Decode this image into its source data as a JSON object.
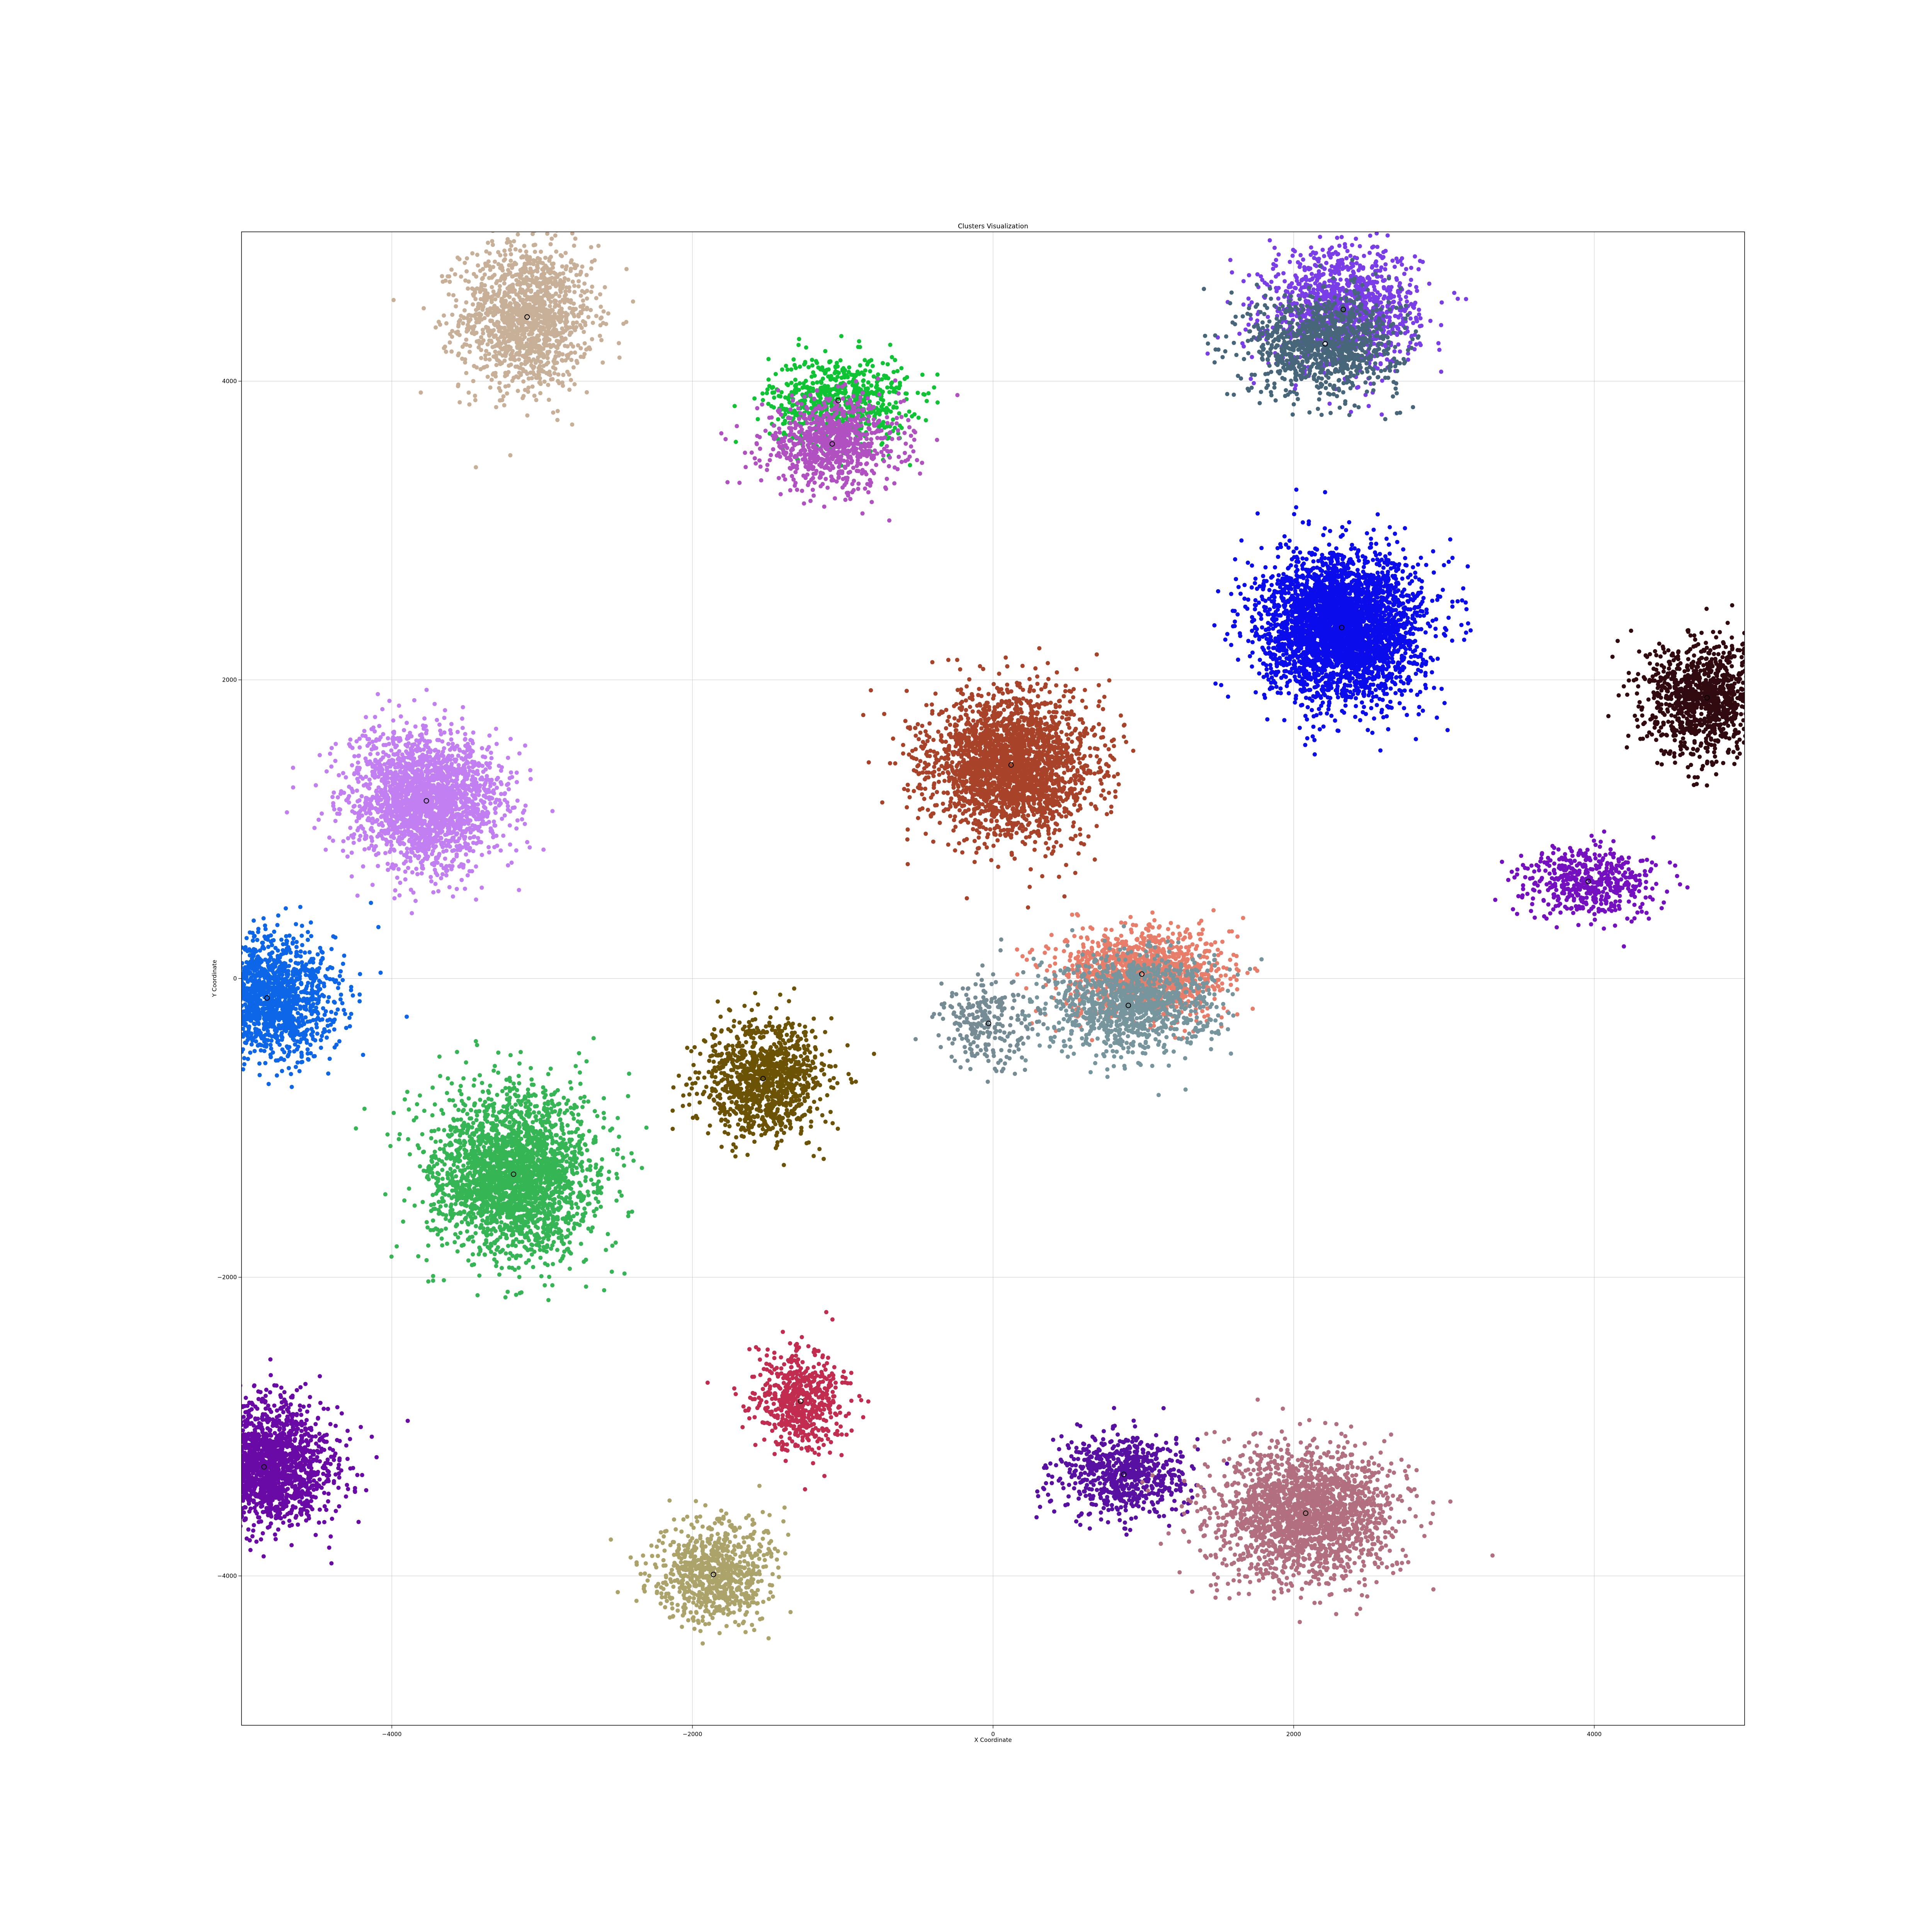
{
  "chart_data": {
    "type": "scatter",
    "title": "Clusters Visualization",
    "xlabel": "X Coordinate",
    "ylabel": "Y Coordinate",
    "xlim": [
      -5000,
      5000
    ],
    "ylim": [
      -5000,
      5000
    ],
    "xticks": [
      -4000,
      -2000,
      0,
      2000,
      4000
    ],
    "yticks": [
      -4000,
      -2000,
      0,
      2000,
      4000
    ],
    "xtick_labels": [
      "−4000",
      "−2000",
      "0",
      "2000",
      "4000"
    ],
    "ytick_labels": [
      "−4000",
      "−2000",
      "0",
      "2000",
      "4000"
    ],
    "grid": true,
    "clusters": [
      {
        "center": [
          -3100,
          4430
        ],
        "spread": [
          220,
          240
        ],
        "n": 1400,
        "color": "#c8b098"
      },
      {
        "center": [
          -1030,
          3870
        ],
        "spread": [
          230,
          150
        ],
        "n": 700,
        "color": "#0ec433"
      },
      {
        "center": [
          -1070,
          3580
        ],
        "spread": [
          230,
          150
        ],
        "n": 800,
        "color": "#b150c0"
      },
      {
        "center": [
          2330,
          4480
        ],
        "spread": [
          250,
          200
        ],
        "n": 1200,
        "color": "#7a3ee8"
      },
      {
        "center": [
          2210,
          4250
        ],
        "spread": [
          250,
          170
        ],
        "n": 1000,
        "color": "#47667a"
      },
      {
        "center": [
          2320,
          2350
        ],
        "spread": [
          260,
          240
        ],
        "n": 3500,
        "color": "#0a0ceb"
      },
      {
        "center": [
          4750,
          1880
        ],
        "spread": [
          210,
          190
        ],
        "n": 1100,
        "color": "#310a0f"
      },
      {
        "center": [
          120,
          1430
        ],
        "spread": [
          270,
          240
        ],
        "n": 2500,
        "color": "#a8432a"
      },
      {
        "center": [
          -3770,
          1190
        ],
        "spread": [
          250,
          220
        ],
        "n": 2200,
        "color": "#c17ff2"
      },
      {
        "center": [
          3960,
          650
        ],
        "spread": [
          230,
          120
        ],
        "n": 500,
        "color": "#7410c0"
      },
      {
        "center": [
          -4830,
          -130
        ],
        "spread": [
          220,
          200
        ],
        "n": 1600,
        "color": "#0d66e8"
      },
      {
        "center": [
          990,
          30
        ],
        "spread": [
          270,
          150
        ],
        "n": 1300,
        "color": "#e87e6a"
      },
      {
        "center": [
          900,
          -180
        ],
        "spread": [
          270,
          170
        ],
        "n": 1100,
        "color": "#76959d"
      },
      {
        "center": [
          -30,
          -300
        ],
        "spread": [
          150,
          150
        ],
        "n": 250,
        "color": "#768c95"
      },
      {
        "center": [
          -1530,
          -670
        ],
        "spread": [
          200,
          190
        ],
        "n": 1100,
        "color": "#6b5205"
      },
      {
        "center": [
          -3190,
          -1310
        ],
        "spread": [
          270,
          270
        ],
        "n": 2600,
        "color": "#35b554"
      },
      {
        "center": [
          -1280,
          -2830
        ],
        "spread": [
          150,
          170
        ],
        "n": 600,
        "color": "#c22c4f"
      },
      {
        "center": [
          -4850,
          -3270
        ],
        "spread": [
          220,
          200
        ],
        "n": 1900,
        "color": "#6a0aa6"
      },
      {
        "center": [
          870,
          -3320
        ],
        "spread": [
          220,
          140
        ],
        "n": 700,
        "color": "#5710a2"
      },
      {
        "center": [
          2080,
          -3580
        ],
        "spread": [
          300,
          220
        ],
        "n": 2000,
        "color": "#b26f80"
      },
      {
        "center": [
          -1860,
          -3990
        ],
        "spread": [
          200,
          170
        ],
        "n": 800,
        "color": "#aba36a"
      }
    ],
    "center_markers": [
      [
        -3100,
        4430
      ],
      [
        -1030,
        3870
      ],
      [
        -1070,
        3580
      ],
      [
        2330,
        4480
      ],
      [
        2210,
        4250
      ],
      [
        2320,
        2350
      ],
      [
        4750,
        1880
      ],
      [
        120,
        1430
      ],
      [
        -3770,
        1190
      ],
      [
        3960,
        650
      ],
      [
        -4830,
        -130
      ],
      [
        990,
        30
      ],
      [
        900,
        -180
      ],
      [
        -30,
        -300
      ],
      [
        -1530,
        -670
      ],
      [
        -3190,
        -1310
      ],
      [
        -1280,
        -2830
      ],
      [
        -4850,
        -3270
      ],
      [
        870,
        -3320
      ],
      [
        2080,
        -3580
      ],
      [
        -1860,
        -3990
      ]
    ]
  }
}
